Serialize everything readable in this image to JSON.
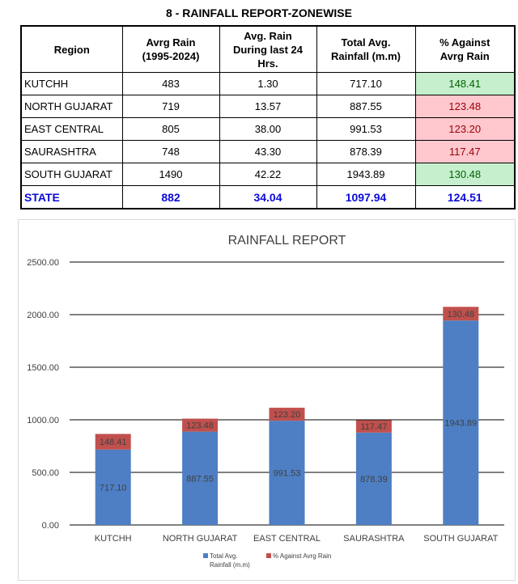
{
  "report": {
    "title": "8 - RAINFALL REPORT-ZONEWISE",
    "headers": [
      "Region",
      "Avrg Rain\n(1995-2024)",
      "Avg. Rain\nDuring last 24\nHrs.",
      "Total Avg.\nRainfall (m.m)",
      "% Against\nAvrg Rain"
    ],
    "rows": [
      {
        "region": "KUTCHH",
        "avg": "483",
        "last24": "1.30",
        "total": "717.10",
        "pct": "148.41",
        "status": "good"
      },
      {
        "region": "NORTH GUJARAT",
        "avg": "719",
        "last24": "13.57",
        "total": "887.55",
        "pct": "123.48",
        "status": "bad"
      },
      {
        "region": "EAST CENTRAL",
        "avg": "805",
        "last24": "38.00",
        "total": "991.53",
        "pct": "123.20",
        "status": "bad"
      },
      {
        "region": "SAURASHTRA",
        "avg": "748",
        "last24": "43.30",
        "total": "878.39",
        "pct": "117.47",
        "status": "bad"
      },
      {
        "region": "SOUTH GUJARAT",
        "avg": "1490",
        "last24": "42.22",
        "total": "1943.89",
        "pct": "130.48",
        "status": "good"
      }
    ],
    "state": {
      "region": "STATE",
      "avg": "882",
      "last24": "34.04",
      "total": "1097.94",
      "pct": "124.51"
    }
  },
  "chart_data": {
    "type": "bar",
    "stacked": true,
    "title": "RAINFALL REPORT",
    "categories": [
      "KUTCHH",
      "NORTH GUJARAT",
      "EAST CENTRAL",
      "SAURASHTRA",
      "SOUTH GUJARAT"
    ],
    "series": [
      {
        "name": "Total Avg. Rainfall (m.m)",
        "values": [
          717.1,
          887.55,
          991.53,
          878.39,
          1943.89
        ],
        "color": "#4e7fc4"
      },
      {
        "name": "% Against Avrg Rain",
        "values": [
          148.41,
          123.48,
          123.2,
          117.47,
          130.48
        ],
        "color": "#c0504d"
      }
    ],
    "yticks": [
      "0.00",
      "500.00",
      "1000.00",
      "1500.00",
      "2000.00",
      "2500.00"
    ],
    "ylim": [
      0,
      2500
    ],
    "grid": true,
    "legend": "bottom",
    "xlabel": "",
    "ylabel": ""
  },
  "colors": {
    "good_bg": "#c6efce",
    "bad_bg": "#ffc7ce",
    "state_text": "#0b0bd9"
  }
}
